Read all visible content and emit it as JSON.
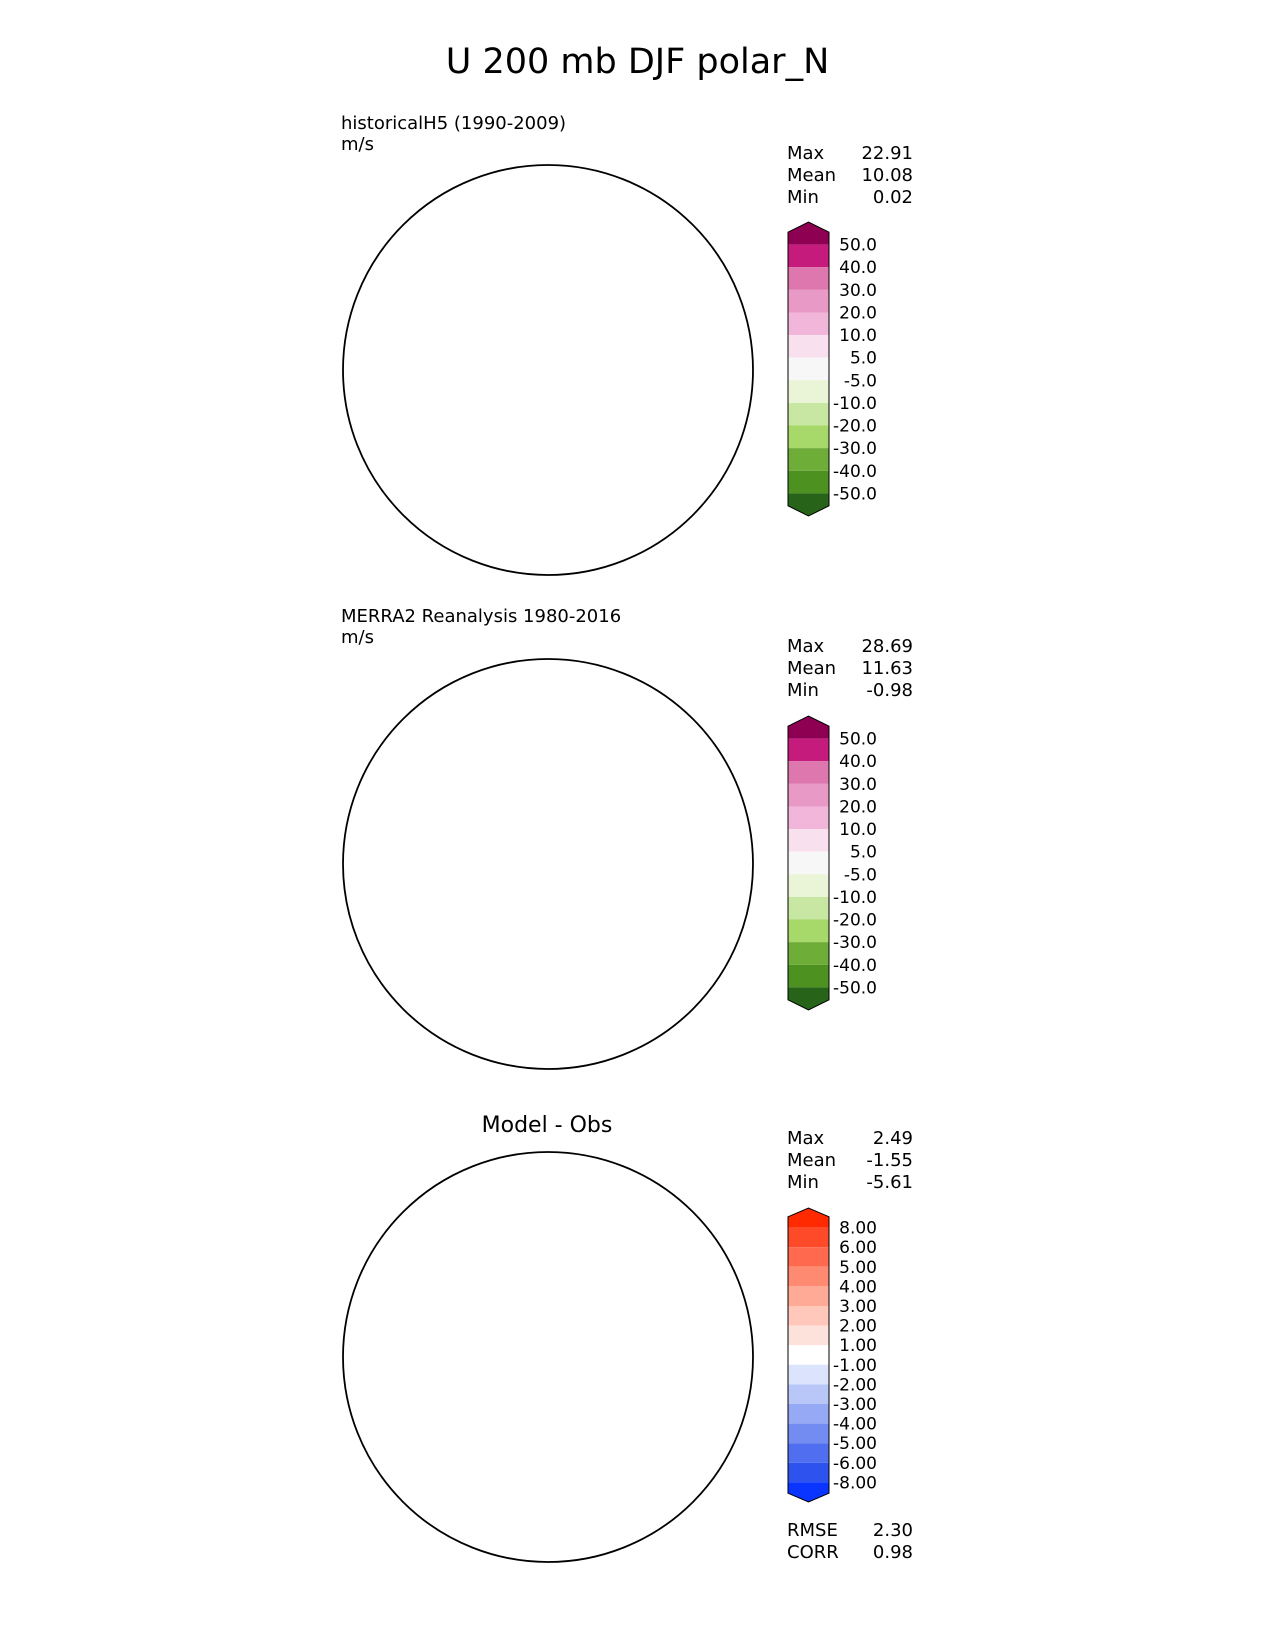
{
  "figure_title": "U 200 mb DJF polar_N",
  "chart_data": [
    {
      "type": "polar-contour-map",
      "title": "historicalH5 (1990-2009)",
      "units": "m/s",
      "stats": [
        {
          "label": "Max",
          "value": "22.91"
        },
        {
          "label": "Mean",
          "value": "10.08"
        },
        {
          "label": "Min",
          "value": "0.02"
        }
      ],
      "colorbar": {
        "levels": [
          "50.0",
          "40.0",
          "30.0",
          "20.0",
          "10.0",
          "5.0",
          "-5.0",
          "-10.0",
          "-20.0",
          "-30.0",
          "-40.0",
          "-50.0"
        ],
        "colors": [
          "#8e0152",
          "#c51b7d",
          "#de77ae",
          "#e999c6",
          "#f1b6da",
          "#f9e0ee",
          "#f7f7f7",
          "#eaf5d8",
          "#c8e7a3",
          "#a6d96a",
          "#6fad39",
          "#4d9221",
          "#276419"
        ]
      },
      "field": {
        "base": "#f4c6e2",
        "zones": [
          "#e999c6",
          "#f9e0ee",
          "#f7f7f5"
        ]
      }
    },
    {
      "type": "polar-contour-map",
      "title": "MERRA2 Reanalysis 1980-2016",
      "units": "m/s",
      "stats": [
        {
          "label": "Max",
          "value": "28.69"
        },
        {
          "label": "Mean",
          "value": "11.63"
        },
        {
          "label": "Min",
          "value": "-0.98"
        }
      ],
      "colorbar": {
        "levels": [
          "50.0",
          "40.0",
          "30.0",
          "20.0",
          "10.0",
          "5.0",
          "-5.0",
          "-10.0",
          "-20.0",
          "-30.0",
          "-40.0",
          "-50.0"
        ],
        "colors": [
          "#8e0152",
          "#c51b7d",
          "#de77ae",
          "#e999c6",
          "#f1b6da",
          "#f9e0ee",
          "#f7f7f7",
          "#eaf5d8",
          "#c8e7a3",
          "#a6d96a",
          "#6fad39",
          "#4d9221",
          "#276419"
        ]
      },
      "field": {
        "base": "#f4c6e2",
        "zones": [
          "#e999c6",
          "#f9e0ee",
          "#f7f7f5"
        ]
      }
    },
    {
      "type": "polar-contour-map",
      "title": "Model - Obs",
      "units": "",
      "stats": [
        {
          "label": "Max",
          "value": "2.49"
        },
        {
          "label": "Mean",
          "value": "-1.55"
        },
        {
          "label": "Min",
          "value": "-5.61"
        }
      ],
      "metrics": [
        {
          "label": "RMSE",
          "value": "2.30"
        },
        {
          "label": "CORR",
          "value": "0.98"
        }
      ],
      "colorbar": {
        "levels": [
          "8.00",
          "6.00",
          "5.00",
          "4.00",
          "3.00",
          "2.00",
          "1.00",
          "-1.00",
          "-2.00",
          "-3.00",
          "-4.00",
          "-5.00",
          "-6.00",
          "-8.00"
        ],
        "colors": [
          "#ff2a00",
          "#ff4a2a",
          "#ff6a4e",
          "#ff8a72",
          "#ffaa96",
          "#ffc8ba",
          "#fde2dc",
          "#ffffff",
          "#dce3fc",
          "#b9c6f8",
          "#96a9f5",
          "#738cf2",
          "#506ff0",
          "#2d52ee",
          "#0a34ff"
        ]
      },
      "field": {
        "base": "#ffffff",
        "zones": [
          "#b9c6f8",
          "#96a9f5",
          "#738cf2",
          "#dce3fc",
          "#fde2dc"
        ]
      }
    }
  ]
}
